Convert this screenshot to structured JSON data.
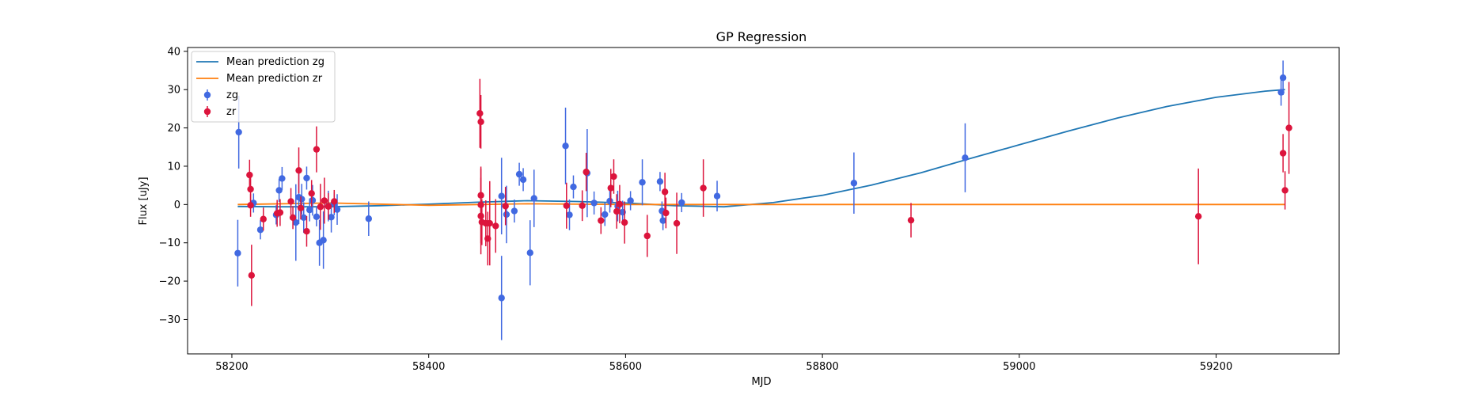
{
  "chart_data": {
    "type": "scatter",
    "title": "GP Regression",
    "xlabel": "MJD",
    "ylabel": "Flux [uJy]",
    "xlim": [
      58155,
      59325
    ],
    "ylim": [
      -39,
      41
    ],
    "xticks": [
      58200,
      58400,
      58600,
      58800,
      59000,
      59200
    ],
    "yticks": [
      -30,
      -20,
      -10,
      0,
      10,
      20,
      30,
      40
    ],
    "legend_position": "top-left",
    "series": [
      {
        "name": "Mean prediction zg",
        "kind": "line",
        "color": "#1f77b4",
        "x": [
          58206,
          58250,
          58300,
          58350,
          58400,
          58450,
          58500,
          58550,
          58600,
          58650,
          58700,
          58750,
          58800,
          58850,
          58900,
          58950,
          59000,
          59050,
          59100,
          59150,
          59200,
          59250,
          59270
        ],
        "y": [
          -0.5,
          -0.6,
          -0.6,
          -0.3,
          0.1,
          0.6,
          1.0,
          0.8,
          0.4,
          -0.3,
          -0.6,
          0.5,
          2.4,
          5.1,
          8.3,
          12.0,
          15.6,
          19.2,
          22.6,
          25.6,
          28.0,
          29.6,
          30.0
        ]
      },
      {
        "name": "Mean prediction zr",
        "kind": "line",
        "color": "#ff7f0e",
        "x": [
          58206,
          58300,
          58400,
          58500,
          58600,
          58700,
          58800,
          58900,
          59000,
          59100,
          59200,
          59270
        ],
        "y": [
          0.0,
          0.4,
          -0.2,
          0.2,
          0.0,
          0.0,
          0.0,
          0.0,
          0.0,
          0.0,
          0.0,
          0.0
        ]
      },
      {
        "name": "zg",
        "kind": "errorbar",
        "color": "#4169e1",
        "points": [
          [
            58206,
            -12.7,
            8.7
          ],
          [
            58207,
            18.9,
            9.5
          ],
          [
            58222,
            0.4,
            2.5
          ],
          [
            58229,
            -6.6,
            2.5
          ],
          [
            58245,
            -2.7,
            2.5
          ],
          [
            58248,
            3.7,
            3.0
          ],
          [
            58251,
            6.8,
            3.0
          ],
          [
            58265,
            -4.7,
            10.0
          ],
          [
            58268,
            1.9,
            7.0
          ],
          [
            58271,
            1.4,
            4.0
          ],
          [
            58273,
            -3.4,
            4.0
          ],
          [
            58276,
            6.9,
            3.0
          ],
          [
            58279,
            -1.4,
            3.0
          ],
          [
            58282,
            1.1,
            4.0
          ],
          [
            58286,
            -3.2,
            2.5
          ],
          [
            58289,
            -10.0,
            6.0
          ],
          [
            58293,
            -9.3,
            7.5
          ],
          [
            58298,
            -0.4,
            4.0
          ],
          [
            58301,
            -3.3,
            4.0
          ],
          [
            58304,
            0.2,
            3.0
          ],
          [
            58307,
            -1.3,
            4.0
          ],
          [
            58339,
            -3.7,
            4.5
          ],
          [
            58474,
            2.2,
            10.0
          ],
          [
            58474,
            -24.4,
            11.0
          ],
          [
            58479,
            -2.6,
            7.5
          ],
          [
            58487,
            -1.7,
            3.0
          ],
          [
            58492,
            7.9,
            3.0
          ],
          [
            58496,
            6.5,
            3.0
          ],
          [
            58503,
            -12.6,
            8.5
          ],
          [
            58507,
            1.6,
            7.5
          ],
          [
            58539,
            15.3,
            10.0
          ],
          [
            58543,
            -2.7,
            4.0
          ],
          [
            58547,
            4.6,
            3.0
          ],
          [
            58561,
            8.2,
            11.5
          ],
          [
            58568,
            0.4,
            3.0
          ],
          [
            58579,
            -2.6,
            3.0
          ],
          [
            58584,
            0.9,
            3.0
          ],
          [
            58592,
            -0.4,
            4.0
          ],
          [
            58597,
            -2.0,
            3.0
          ],
          [
            58605,
            1.0,
            2.5
          ],
          [
            58617,
            5.8,
            6.0
          ],
          [
            58635,
            6.0,
            2.5
          ],
          [
            58637,
            -1.7,
            2.5
          ],
          [
            58638,
            -4.2,
            2.5
          ],
          [
            58657,
            0.5,
            2.5
          ],
          [
            58693,
            2.2,
            4.0
          ],
          [
            58832,
            5.6,
            8.0
          ],
          [
            58945,
            12.2,
            9.0
          ],
          [
            59266,
            29.3,
            3.5
          ],
          [
            59268,
            33.1,
            4.5
          ]
        ]
      },
      {
        "name": "zr",
        "kind": "errorbar",
        "color": "#dc143c",
        "points": [
          [
            58218,
            7.7,
            4.0
          ],
          [
            58219,
            4.0,
            3.5
          ],
          [
            58219,
            -0.2,
            3.0
          ],
          [
            58220,
            -18.5,
            8.0
          ],
          [
            58232,
            -3.8,
            3.0
          ],
          [
            58246,
            -2.3,
            3.5
          ],
          [
            58249,
            -2.1,
            3.5
          ],
          [
            58260,
            0.8,
            3.5
          ],
          [
            58262,
            -3.4,
            3.0
          ],
          [
            58268,
            8.9,
            6.0
          ],
          [
            58270,
            -0.9,
            3.0
          ],
          [
            58276,
            -7.0,
            4.0
          ],
          [
            58281,
            2.9,
            3.5
          ],
          [
            58286,
            14.4,
            6.0
          ],
          [
            58290,
            -0.6,
            6.0
          ],
          [
            58294,
            1.0,
            6.0
          ],
          [
            58298,
            -0.5,
            3.5
          ],
          [
            58304,
            0.8,
            3.0
          ],
          [
            58452,
            23.8,
            9.0
          ],
          [
            58453,
            21.6,
            7.0
          ],
          [
            58453,
            2.4,
            7.0
          ],
          [
            58453,
            -0.1,
            10.0
          ],
          [
            58453,
            -3.0,
            10.0
          ],
          [
            58454,
            -4.6,
            6.0
          ],
          [
            58458,
            -4.9,
            6.0
          ],
          [
            58460,
            -8.9,
            7.0
          ],
          [
            58462,
            -4.9,
            11.0
          ],
          [
            58468,
            -5.6,
            7.0
          ],
          [
            58478,
            -0.4,
            5.0
          ],
          [
            58540,
            -0.3,
            6.0
          ],
          [
            58556,
            -0.3,
            4.0
          ],
          [
            58560,
            8.5,
            5.0
          ],
          [
            58575,
            -4.2,
            3.5
          ],
          [
            58585,
            4.3,
            5.0
          ],
          [
            58588,
            7.3,
            4.5
          ],
          [
            58591,
            -1.8,
            4.5
          ],
          [
            58594,
            0.1,
            5.0
          ],
          [
            58599,
            -4.7,
            5.5
          ],
          [
            58622,
            -8.2,
            5.5
          ],
          [
            58640,
            3.3,
            5.0
          ],
          [
            58641,
            -2.2,
            4.0
          ],
          [
            58652,
            -4.9,
            8.0
          ],
          [
            58679,
            4.3,
            7.5
          ],
          [
            58890,
            -4.1,
            4.5
          ],
          [
            59182,
            -3.1,
            12.5
          ],
          [
            59268,
            13.4,
            5.0
          ],
          [
            59270,
            3.7,
            5.0
          ],
          [
            59274,
            20.0,
            12.0
          ]
        ]
      }
    ]
  }
}
